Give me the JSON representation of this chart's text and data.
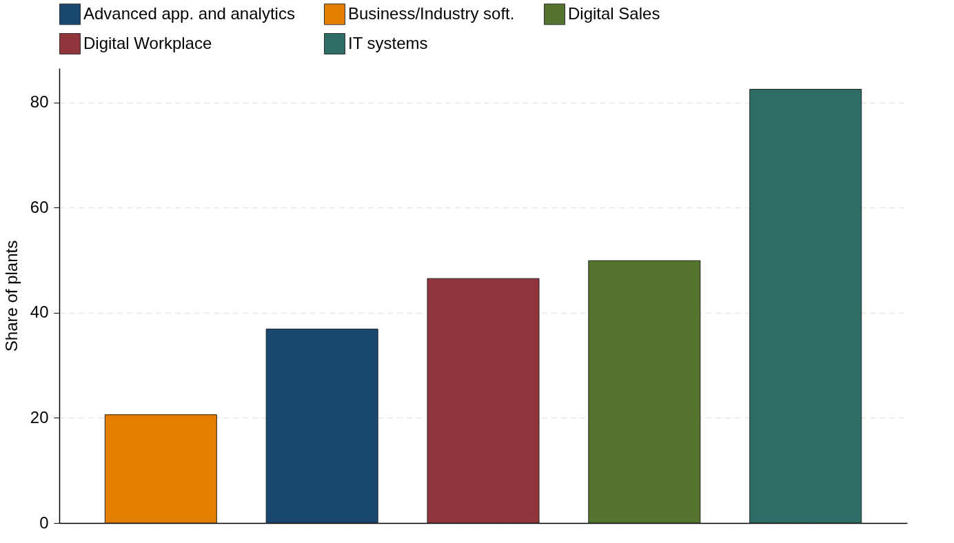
{
  "chart_data": {
    "type": "bar",
    "ylabel": "Share of plants",
    "categories": [
      null,
      null,
      null,
      null,
      null
    ],
    "series": [
      {
        "name": "Advanced app. and analytics",
        "color": "#1a476f",
        "values": [
          null,
          36.9,
          null,
          null,
          null
        ]
      },
      {
        "name": "Business/Industry soft.",
        "color": "#e37e00",
        "values": [
          20.6,
          null,
          null,
          null,
          null
        ]
      },
      {
        "name": "Digital Sales",
        "color": "#55752f",
        "values": [
          null,
          null,
          null,
          49.9,
          null
        ]
      },
      {
        "name": "Digital Workplace",
        "color": "#90353b",
        "values": [
          null,
          null,
          46.5,
          null,
          null
        ]
      },
      {
        "name": "IT systems",
        "color": "#2d6d66",
        "values": [
          null,
          null,
          null,
          null,
          82.5
        ]
      }
    ],
    "ylim": [
      0,
      86.5
    ],
    "yticks": [
      0,
      20,
      40,
      60,
      80
    ],
    "grid": "y",
    "legend": "top",
    "tick_labels": "y"
  }
}
